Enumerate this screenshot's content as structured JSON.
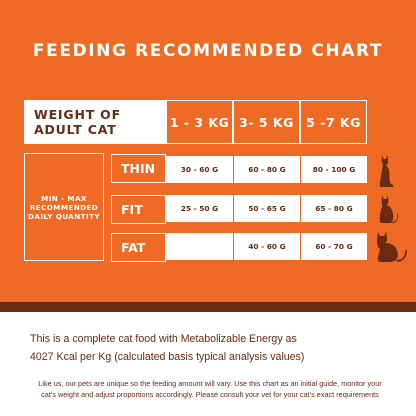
{
  "title": "FEEDING RECOMMENDED CHART",
  "weight_header": {
    "line1": "WEIGHT OF",
    "line2": "ADULT CAT"
  },
  "weight_columns": [
    "1 - 3 KG",
    "3- 5 KG",
    "5 -7 KG"
  ],
  "side_label": {
    "line1": "MIN - MAX",
    "line2": "RECOMMENDED",
    "line3": "DAILY QUANTITY"
  },
  "rows": [
    {
      "label": "THIN",
      "values": [
        "30 - 60 G",
        "60 - 80 G",
        "80 - 100 G"
      ],
      "icon": "thin-cat-icon"
    },
    {
      "label": "FIT",
      "values": [
        "25 - 50 G",
        "50 - 65 G",
        "65 - 80 G"
      ],
      "icon": "fit-cat-icon"
    },
    {
      "label": "FAT",
      "values": [
        "",
        "40 - 60 G",
        "60 - 70 G"
      ],
      "icon": "fat-cat-icon"
    }
  ],
  "energy_text": {
    "line1": "This is a complete cat food with Metabolizable Energy as",
    "line2": "4027 Kcal per Kg (calculated basis typical analysis values)"
  },
  "note_text": {
    "line1": "Like us, our pets are unique so the feeding amount will vary. Use this chart as an initial guide, monitor your",
    "line2": "cat's weight and adjust proportions accordingly. Please consult your vet for your cat's exact requirements"
  },
  "colors": {
    "orange": "#ef6a24",
    "brown": "#6b2a12",
    "white": "#ffffff"
  }
}
